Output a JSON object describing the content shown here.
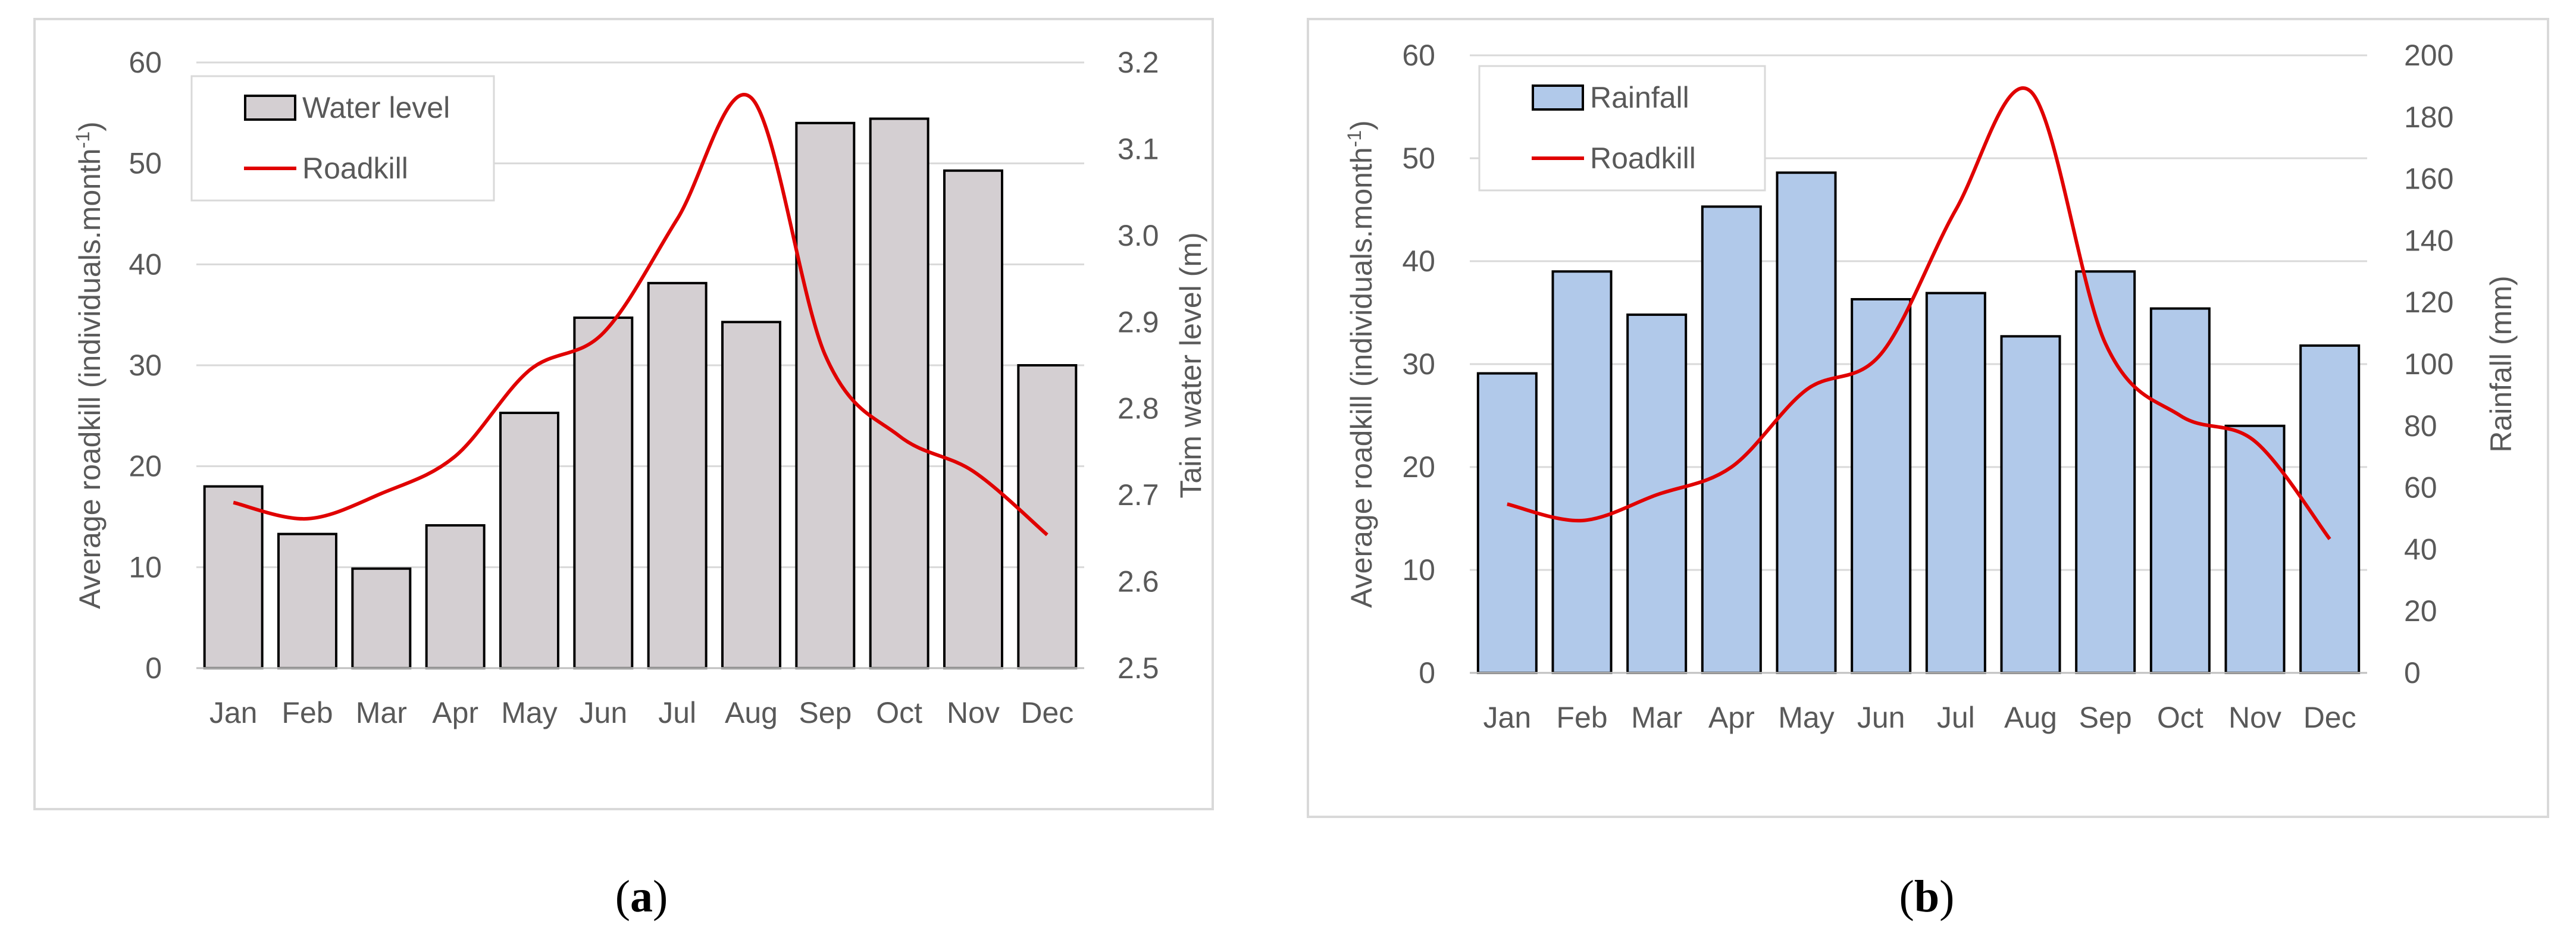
{
  "panels": [
    {
      "caption_letter": "a",
      "caption_open": "(",
      "caption_close": ")",
      "chart_data": {
        "type": "bar",
        "title": "",
        "categories": [
          "Jan",
          "Feb",
          "Mar",
          "Apr",
          "May",
          "Jun",
          "Jul",
          "Aug",
          "Sep",
          "Oct",
          "Nov",
          "Dec"
        ],
        "series": [
          {
            "name": "Water level",
            "type": "bar",
            "axis": "right",
            "values": [
              2.71,
              2.655,
              2.615,
              2.665,
              2.795,
              2.905,
              2.945,
              2.9,
              3.13,
              3.135,
              3.075,
              2.85
            ],
            "color": "#d4cfd2"
          },
          {
            "name": "Roadkill",
            "type": "line",
            "axis": "left",
            "values": [
              16.4,
              14.8,
              17.3,
              21.0,
              29.5,
              33.2,
              44.5,
              56.5,
              31.0,
              23.0,
              19.5,
              13.2
            ],
            "color": "#e00000"
          }
        ],
        "ylabel_left": "Average roadkill (individuals.month",
        "ylabel_left_sup": "-1",
        "ylabel_left_close": ")",
        "ylabel_right": "Taim water level (m)",
        "ylim_left": [
          0,
          60
        ],
        "ylim_right": [
          2.5,
          3.2
        ],
        "yticks_left": [
          "0",
          "10",
          "20",
          "30",
          "40",
          "50",
          "60"
        ],
        "yticks_right": [
          "2.5",
          "2.6",
          "2.7",
          "2.8",
          "2.9",
          "3.0",
          "3.1",
          "3.2"
        ],
        "legend": [
          "Water level",
          "Roadkill"
        ],
        "grid": true
      }
    },
    {
      "caption_letter": "b",
      "caption_open": "(",
      "caption_close": ")",
      "chart_data": {
        "type": "bar",
        "title": "",
        "categories": [
          "Jan",
          "Feb",
          "Mar",
          "Apr",
          "May",
          "Jun",
          "Jul",
          "Aug",
          "Sep",
          "Oct",
          "Nov",
          "Dec"
        ],
        "series": [
          {
            "name": "Rainfall",
            "type": "bar",
            "axis": "right",
            "values": [
              97,
              130,
              116,
              151,
              162,
              121,
              123,
              109,
              130,
              118,
              80,
              106
            ],
            "color": "#b1c9ea"
          },
          {
            "name": "Roadkill",
            "type": "line",
            "axis": "left",
            "values": [
              16.4,
              14.8,
              17.3,
              20.0,
              27.5,
              31.0,
              45.0,
              56.5,
              32.0,
              25.0,
              22.5,
              13.0
            ],
            "color": "#e00000"
          }
        ],
        "ylabel_left": "Average roadkill (individuals.month",
        "ylabel_left_sup": "-1",
        "ylabel_left_close": ")",
        "ylabel_right": "Rainfall (mm)",
        "ylim_left": [
          0,
          60
        ],
        "ylim_right": [
          0,
          200
        ],
        "yticks_left": [
          "0",
          "10",
          "20",
          "30",
          "40",
          "50",
          "60"
        ],
        "yticks_right": [
          "0",
          "20",
          "40",
          "60",
          "80",
          "100",
          "120",
          "140",
          "160",
          "180",
          "200"
        ],
        "legend": [
          "Rainfall",
          "Roadkill"
        ],
        "grid": true
      }
    }
  ]
}
